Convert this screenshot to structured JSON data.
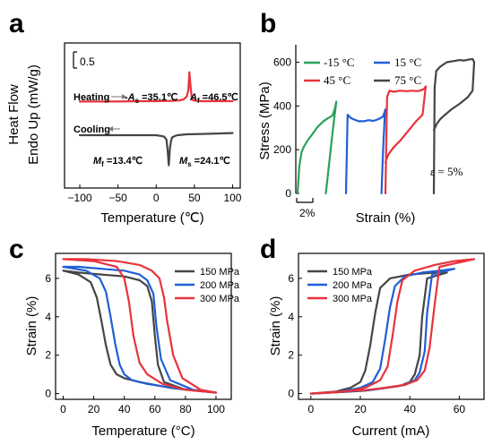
{
  "chart_data": [
    {
      "panel": "a",
      "type": "line",
      "xlabel": "Temperature (℃)",
      "ylabel_lines": [
        "Heat Flow",
        "Endo Up (mW/g)"
      ],
      "xlim": [
        -120,
        110
      ],
      "xticks": [
        -100,
        -50,
        0,
        50,
        100
      ],
      "scale_bar_label": "0.5",
      "annotations": {
        "heating": "Heating",
        "cooling": "Cooling",
        "As_sym": "A",
        "As_sub": "s",
        "As_val": " =35.1℃",
        "Af_sym": "A",
        "Af_sub": "f",
        "Af_val": " =46.5℃",
        "Mf_sym": "M",
        "Mf_sub": "f",
        "Mf_val": " =13.4℃",
        "Ms_sym": "M",
        "Ms_sub": "s",
        "Ms_val": " =24.1℃"
      },
      "series": [
        {
          "color": "#e8333c",
          "x": [
            -100,
            -60,
            -20,
            0,
            20,
            30,
            36,
            40,
            42,
            43.5,
            45,
            46.5,
            48,
            52,
            60,
            80,
            100
          ],
          "y": [
            0.98,
            0.98,
            0.99,
            0.99,
            1.0,
            1.01,
            1.04,
            1.12,
            1.3,
            1.8,
            1.4,
            1.08,
            1.02,
            1.0,
            0.99,
            0.99,
            0.99
          ]
        },
        {
          "color": "#454545",
          "x": [
            -100,
            -60,
            -20,
            0,
            10,
            13.4,
            15,
            16.5,
            18,
            19.5,
            21,
            24.1,
            28,
            40,
            60,
            80,
            100
          ],
          "y": [
            0.0,
            0.0,
            0.0,
            0.0,
            -0.03,
            -0.1,
            -0.35,
            -0.7,
            -0.3,
            -0.12,
            -0.05,
            -0.02,
            0.0,
            0.02,
            0.03,
            0.04,
            0.05
          ]
        }
      ]
    },
    {
      "panel": "b",
      "type": "line",
      "xlabel": "Strain (%)",
      "ylabel": "Stress (MPa)",
      "ylim": [
        0,
        680
      ],
      "yticks": [
        0,
        200,
        400,
        600
      ],
      "scale_bar_label": "2%",
      "strain_note_sym": "ε",
      "strain_note_val": " = 5%",
      "legend": [
        "-15 °C",
        "15 °C",
        "45 °C",
        "75 °C"
      ],
      "series": [
        {
          "name": "-15 °C",
          "color": "#2ca05a",
          "x": [
            0,
            0.2,
            0.5,
            0.8,
            1.2,
            1.8,
            2.5,
            3.2,
            3.8,
            4.3,
            4.6,
            4.8,
            4.4,
            3.8,
            3.5
          ],
          "y": [
            0,
            120,
            190,
            215,
            240,
            270,
            305,
            330,
            345,
            355,
            385,
            420,
            300,
            100,
            0
          ]
        },
        {
          "name": "15 °C",
          "color": "#1f5fd6",
          "x": [
            0,
            0.2,
            0.6,
            1.0,
            1.6,
            2.2,
            2.8,
            3.4,
            3.9,
            4.3,
            4.6,
            4.9,
            4.8,
            4.6,
            4.4
          ],
          "y": [
            0,
            360,
            345,
            338,
            330,
            330,
            335,
            332,
            338,
            345,
            352,
            385,
            350,
            200,
            0
          ]
        },
        {
          "name": "45 °C",
          "color": "#e8333c",
          "x": [
            0,
            0.2,
            0.5,
            1.0,
            1.8,
            2.6,
            3.4,
            4.0,
            4.4,
            4.8,
            5.0,
            4.6,
            3.8,
            2.8,
            1.8,
            1.0,
            0.4,
            0.1,
            0.0
          ],
          "y": [
            0,
            440,
            470,
            465,
            470,
            468,
            470,
            468,
            472,
            478,
            490,
            360,
            330,
            285,
            240,
            210,
            180,
            155,
            140
          ]
        },
        {
          "name": "75 °C",
          "color": "#454545",
          "x": [
            0,
            0.1,
            0.3,
            0.8,
            1.6,
            2.4,
            3.2,
            3.8,
            4.3,
            4.8,
            5.0,
            4.8,
            4.2,
            3.2,
            2.2,
            1.4,
            0.8,
            0.4,
            0.2,
            0.0
          ],
          "y": [
            0,
            485,
            560,
            580,
            600,
            605,
            610,
            608,
            612,
            615,
            600,
            470,
            440,
            410,
            385,
            360,
            340,
            320,
            305,
            290
          ]
        }
      ]
    },
    {
      "panel": "c",
      "type": "line",
      "xlabel": "Temperature (°C)",
      "ylabel": "Strain (%)",
      "xlim": [
        -5,
        110
      ],
      "ylim": [
        -0.3,
        7.3
      ],
      "xticks": [
        0,
        20,
        40,
        60,
        80,
        100
      ],
      "yticks": [
        0,
        2,
        4,
        6
      ],
      "legend": [
        "150 MPa",
        "200 MPa",
        "300 MPa"
      ],
      "series": [
        {
          "name": "150 MPa",
          "color": "#454545",
          "x": [
            0,
            10,
            18,
            22,
            25,
            28,
            31,
            35,
            40,
            50,
            70,
            100,
            80,
            66,
            62,
            60,
            58,
            55,
            50,
            40,
            25,
            10,
            0
          ],
          "y": [
            6.4,
            6.2,
            5.8,
            5.0,
            3.8,
            2.5,
            1.5,
            1.0,
            0.8,
            0.6,
            0.3,
            0.05,
            0.2,
            0.6,
            1.5,
            3.0,
            4.8,
            5.6,
            5.9,
            6.1,
            6.2,
            6.3,
            6.4
          ]
        },
        {
          "name": "200 MPa",
          "color": "#1f5fd6",
          "x": [
            0,
            15,
            24,
            28,
            31,
            34,
            37,
            40,
            45,
            55,
            75,
            100,
            85,
            70,
            64,
            61,
            59,
            55,
            50,
            40,
            25,
            10,
            0
          ],
          "y": [
            6.6,
            6.4,
            6.0,
            5.3,
            4.0,
            2.6,
            1.5,
            1.0,
            0.7,
            0.5,
            0.25,
            0.05,
            0.2,
            0.7,
            1.8,
            3.5,
            5.2,
            5.9,
            6.2,
            6.4,
            6.5,
            6.6,
            6.6
          ]
        },
        {
          "name": "300 MPa",
          "color": "#e8333c",
          "x": [
            0,
            20,
            35,
            40,
            43,
            46,
            50,
            55,
            65,
            80,
            100,
            90,
            78,
            72,
            68,
            66,
            63,
            58,
            50,
            35,
            15,
            0
          ],
          "y": [
            7.0,
            6.9,
            6.6,
            6.0,
            4.8,
            3.0,
            1.6,
            1.0,
            0.5,
            0.2,
            0.05,
            0.2,
            0.8,
            2.0,
            3.8,
            5.0,
            6.0,
            6.4,
            6.7,
            6.9,
            7.0,
            7.0
          ]
        }
      ]
    },
    {
      "panel": "d",
      "type": "line",
      "xlabel": "Current (mA)",
      "ylabel": "Strain (%)",
      "xlim": [
        -5,
        70
      ],
      "ylim": [
        -0.3,
        7.3
      ],
      "xticks": [
        0,
        20,
        40,
        60
      ],
      "yticks": [
        0,
        2,
        4,
        6
      ],
      "legend": [
        "150 MPa",
        "200 MPa",
        "300 MPa"
      ],
      "series": [
        {
          "name": "150 MPa",
          "color": "#454545",
          "x": [
            0,
            10,
            16,
            20,
            22,
            24,
            26,
            28,
            32,
            40,
            50,
            55,
            47,
            45,
            44,
            42,
            40,
            36,
            28,
            22,
            12,
            4,
            0
          ],
          "y": [
            0,
            0.1,
            0.3,
            0.6,
            1.2,
            2.5,
            4.2,
            5.5,
            6.0,
            6.2,
            6.3,
            6.3,
            6.0,
            4.0,
            2.0,
            1.0,
            0.6,
            0.4,
            0.25,
            0.15,
            0.08,
            0.02,
            0
          ]
        },
        {
          "name": "200 MPa",
          "color": "#1f5fd6",
          "x": [
            0,
            12,
            20,
            25,
            28,
            30,
            32,
            34,
            38,
            45,
            52,
            58,
            49,
            47,
            46,
            44,
            42,
            38,
            30,
            24,
            14,
            5,
            0
          ],
          "y": [
            0,
            0.1,
            0.3,
            0.6,
            1.3,
            2.8,
            4.5,
            5.6,
            6.1,
            6.3,
            6.4,
            6.5,
            6.2,
            4.2,
            2.2,
            1.1,
            0.7,
            0.45,
            0.3,
            0.18,
            0.1,
            0.03,
            0
          ]
        },
        {
          "name": "300 MPa",
          "color": "#e8333c",
          "x": [
            0,
            14,
            22,
            28,
            31,
            33,
            35,
            37,
            42,
            50,
            58,
            66,
            52,
            50,
            48,
            46,
            43,
            38,
            30,
            22,
            12,
            4,
            0
          ],
          "y": [
            0,
            0.1,
            0.3,
            0.7,
            1.4,
            3.0,
            4.8,
            5.9,
            6.4,
            6.7,
            6.9,
            7.0,
            6.6,
            4.6,
            2.4,
            1.2,
            0.7,
            0.45,
            0.3,
            0.18,
            0.1,
            0.03,
            0
          ]
        }
      ]
    }
  ]
}
